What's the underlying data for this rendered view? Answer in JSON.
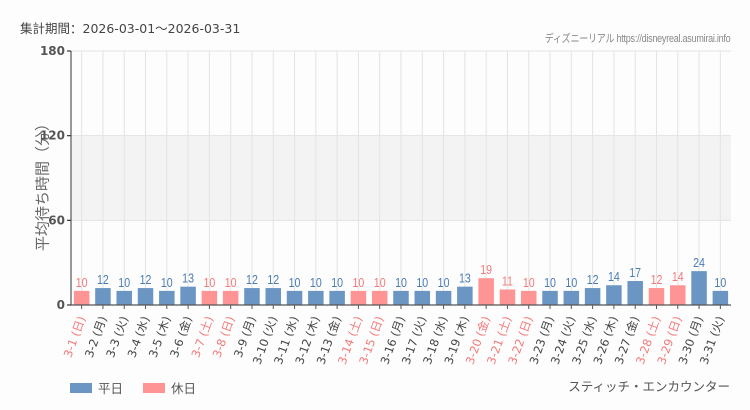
{
  "header": {
    "period": "集計期間：2026-03-01～2026-03-31",
    "credit": "ディズニーリアル https://disneyreal.asumirai.info"
  },
  "footer": {
    "attraction": "スティッチ・エンカウンター"
  },
  "colors": {
    "weekday": "#6b96c3",
    "holiday": "#ff9494",
    "weekday_label": "#4a7cb3",
    "holiday_label": "#f27a7a",
    "band": "#f3f3f3",
    "grid": "#e3e3e3",
    "axis": "#555555"
  },
  "legend": [
    {
      "label": "平日",
      "key": "weekday"
    },
    {
      "label": "休日",
      "key": "holiday"
    }
  ],
  "chart_data": {
    "type": "bar",
    "title": "集計期間：2026-03-01～2026-03-31",
    "xlabel": "",
    "ylabel": "平均待ち時間（分）",
    "ylim": [
      0,
      180
    ],
    "yticks": [
      0,
      60,
      120,
      180
    ],
    "grid": true,
    "legend_position": "bottom-left",
    "categories": [
      "3-1 (日)",
      "3-2 (月)",
      "3-3 (火)",
      "3-4 (水)",
      "3-5 (木)",
      "3-6 (金)",
      "3-7 (土)",
      "3-8 (日)",
      "3-9 (月)",
      "3-10 (火)",
      "3-11 (水)",
      "3-12 (木)",
      "3-13 (金)",
      "3-14 (土)",
      "3-15 (日)",
      "3-16 (月)",
      "3-17 (火)",
      "3-18 (水)",
      "3-19 (木)",
      "3-20 (金)",
      "3-21 (土)",
      "3-22 (日)",
      "3-23 (月)",
      "3-24 (火)",
      "3-25 (水)",
      "3-26 (木)",
      "3-27 (金)",
      "3-28 (土)",
      "3-29 (日)",
      "3-30 (月)",
      "3-31 (火)"
    ],
    "values": [
      10,
      12,
      10,
      12,
      10,
      13,
      10,
      10,
      12,
      12,
      10,
      10,
      10,
      10,
      10,
      10,
      10,
      10,
      13,
      19,
      11,
      10,
      10,
      10,
      12,
      14,
      17,
      12,
      14,
      24,
      10
    ],
    "day_type": [
      "holiday",
      "weekday",
      "weekday",
      "weekday",
      "weekday",
      "weekday",
      "holiday",
      "holiday",
      "weekday",
      "weekday",
      "weekday",
      "weekday",
      "weekday",
      "holiday",
      "holiday",
      "weekday",
      "weekday",
      "weekday",
      "weekday",
      "holiday",
      "holiday",
      "holiday",
      "weekday",
      "weekday",
      "weekday",
      "weekday",
      "weekday",
      "holiday",
      "holiday",
      "weekday",
      "weekday"
    ],
    "series": [
      {
        "name": "平日",
        "color": "#6b96c3"
      },
      {
        "name": "休日",
        "color": "#ff9494"
      }
    ]
  }
}
